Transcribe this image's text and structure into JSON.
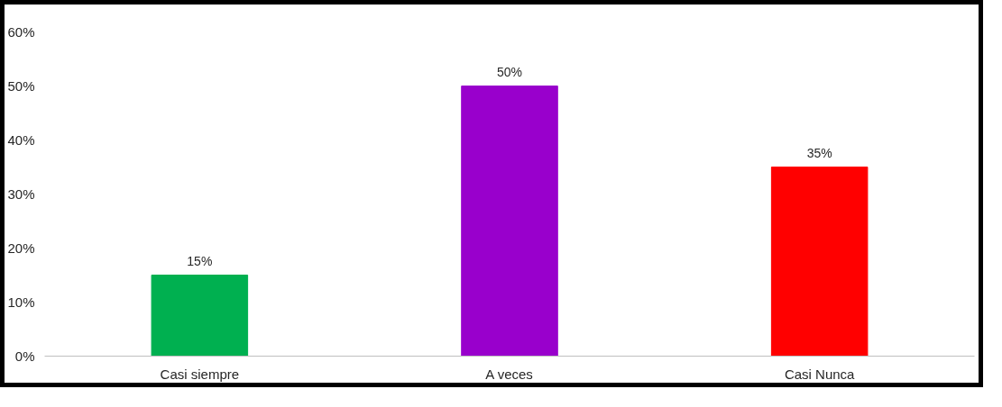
{
  "chart_data": {
    "type": "bar",
    "categories": [
      "Casi siempre",
      "A veces",
      "Casi Nunca"
    ],
    "values": [
      15,
      50,
      35
    ],
    "colors": [
      "#00b050",
      "#9900cc",
      "#ff0000"
    ],
    "ylim": [
      0,
      60
    ],
    "yticks": [
      {
        "value": 0,
        "label": "0%"
      },
      {
        "value": 10,
        "label": "10%"
      },
      {
        "value": 20,
        "label": "20%"
      },
      {
        "value": 30,
        "label": "30%"
      },
      {
        "value": 40,
        "label": "40%"
      },
      {
        "value": 50,
        "label": "50%"
      },
      {
        "value": 60,
        "label": "60%"
      }
    ],
    "value_labels": [
      "15%",
      "50%",
      "35%"
    ],
    "grid": false
  }
}
